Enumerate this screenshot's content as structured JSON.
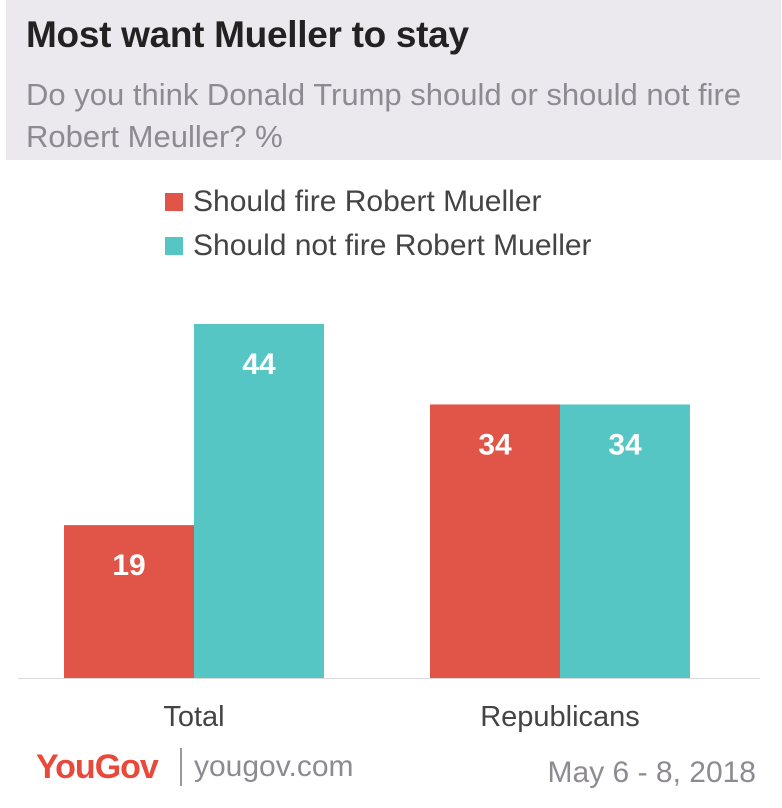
{
  "header": {
    "title": "Most want Mueller to stay",
    "subtitle": "Do you think Donald Trump should or should not fire Robert Meuller? %"
  },
  "colors": {
    "fire": "#e15549",
    "not_fire": "#56c6c4",
    "header_bg": "#ebe9ee"
  },
  "chart_data": {
    "type": "bar",
    "categories": [
      "Total",
      "Republicans"
    ],
    "series": [
      {
        "name": "Should fire Robert Mueller",
        "values": [
          19,
          34
        ]
      },
      {
        "name": "Should not fire Robert Mueller",
        "values": [
          44,
          34
        ]
      }
    ],
    "ylim": [
      0,
      44
    ],
    "grid": false,
    "legend_position": "top-left",
    "data_labels": true
  },
  "footer": {
    "brand": "YouGov",
    "site": "yougov.com",
    "date": "May 6 - 8, 2018"
  }
}
